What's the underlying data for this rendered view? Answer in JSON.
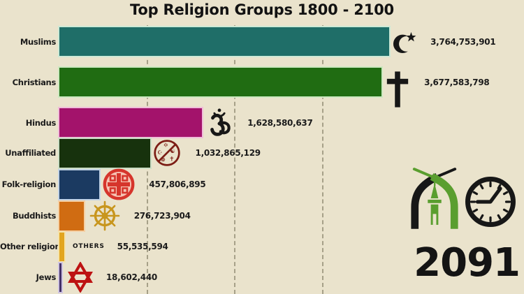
{
  "title": "Top Religion Groups 1800 - 2100",
  "year": "2091",
  "colors": {
    "background": "#eae3cc",
    "title_text": "#121212",
    "value_text": "#1b1b1b",
    "gridline": "#6f6a52",
    "year_text": "#141414",
    "logo_green": "#5a9e2f",
    "logo_black": "#171717"
  },
  "rows": [
    {
      "label": "Muslims",
      "value": 3764753901,
      "value_label": "3,764,753,901",
      "color": "#1f6e68",
      "halo": "#cde9d6",
      "icon": "crescent-star-icon"
    },
    {
      "label": "Christians",
      "value": 3677583798,
      "value_label": "3,677,583,798",
      "color": "#206c12",
      "halo": "#cde8c0",
      "icon": "christian-cross-icon"
    },
    {
      "label": "Hindus",
      "value": 1628580637,
      "value_label": "1,628,580,637",
      "color": "#a3136b",
      "halo": "#f0bdd9",
      "icon": "om-icon"
    },
    {
      "label": "Unaffiliated",
      "value": 1032865129,
      "value_label": "1,032,865,129",
      "color": "#17320d",
      "halo": "#ccdec6",
      "icon": "no-religion-icon"
    },
    {
      "label": "Folk-religion",
      "value": 457806895,
      "value_label": "457,806,895",
      "color": "#1b3a61",
      "halo": "#c2d3e6",
      "icon": "folk-religion-symbol-icon"
    },
    {
      "label": "Buddhists",
      "value": 276723904,
      "value_label": "276,723,904",
      "color": "#d06c12",
      "halo": "#f5cfa2",
      "icon": "dharma-wheel-icon"
    },
    {
      "label": "Other religion",
      "value": 55535594,
      "value_label": "55,535,594",
      "color": "#e2a51f",
      "halo": "#f4e3ab",
      "icon": "others-label",
      "icon_text": "OTHERS"
    },
    {
      "label": "Jews",
      "value": 18602440,
      "value_label": "18,602,440",
      "color": "#433067",
      "halo": "#cfc5e2",
      "icon": "star-of-david-icon"
    }
  ],
  "chart_data": {
    "type": "bar",
    "orientation": "horizontal",
    "title": "Top Religion Groups 1800 - 2100",
    "frame_year": "2091",
    "categories": [
      "Muslims",
      "Christians",
      "Hindus",
      "Unaffiliated",
      "Folk-religion",
      "Buddhists",
      "Other religion",
      "Jews"
    ],
    "values": [
      3764753901,
      3677583798,
      1628580637,
      1032865129,
      457806895,
      276723904,
      55535594,
      18602440
    ],
    "value_labels": [
      "3,764,753,901",
      "3,677,583,798",
      "1,628,580,637",
      "1,032,865,129",
      "457,806,895",
      "276,723,904",
      "55,535,594",
      "18,602,440"
    ],
    "bar_colors": [
      "#1f6e68",
      "#206c12",
      "#a3136b",
      "#17320d",
      "#1b3a61",
      "#d06c12",
      "#e2a51f",
      "#433067"
    ],
    "x_axis": {
      "min": 0,
      "max_estimate": 4000000000,
      "gridlines": [
        1000000000,
        2000000000,
        3000000000
      ],
      "gridline_style": "dashed",
      "tick_labels_visible": false
    },
    "legend": "none",
    "grid": true
  },
  "branding": {
    "icons": [
      "mosque-logo-icon",
      "clock-icon"
    ]
  }
}
